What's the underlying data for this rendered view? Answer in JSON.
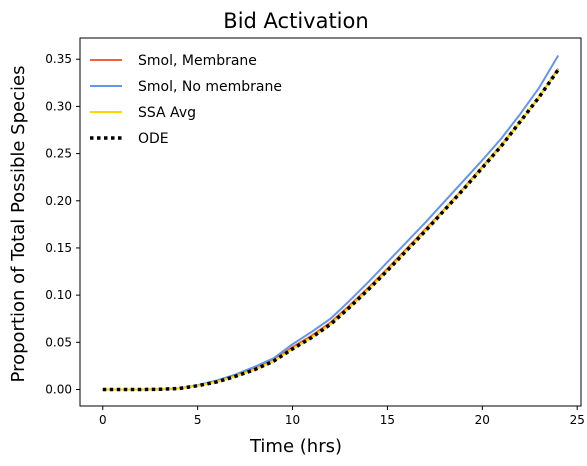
{
  "chart_data": {
    "type": "line",
    "title": "Bid Activation",
    "xlabel": "Time (hrs)",
    "ylabel": "Proportion of Total Possible Species",
    "xlim": [
      -1.2,
      25.2
    ],
    "ylim": [
      -0.0175,
      0.3725
    ],
    "xticks": [
      0,
      5,
      10,
      15,
      20,
      25
    ],
    "xtick_labels": [
      "0",
      "5",
      "10",
      "15",
      "20",
      "25"
    ],
    "yticks": [
      0.0,
      0.05,
      0.1,
      0.15,
      0.2,
      0.25,
      0.3,
      0.35
    ],
    "ytick_labels": [
      "0.00",
      "0.05",
      "0.10",
      "0.15",
      "0.20",
      "0.25",
      "0.30",
      "0.35"
    ],
    "grid": false,
    "legend_position": "top-left",
    "series": [
      {
        "name": "Smol, Membrane",
        "color": "#f4623a",
        "style": "solid",
        "x": [
          0,
          1,
          2,
          3,
          4,
          5,
          6,
          7,
          8,
          9,
          10,
          11,
          12,
          13,
          14,
          15,
          16,
          17,
          18,
          19,
          20,
          21,
          22,
          23,
          24
        ],
        "y": [
          0.0,
          0.0,
          0.0,
          0.0002,
          0.001,
          0.004,
          0.009,
          0.015,
          0.022,
          0.031,
          0.045,
          0.057,
          0.071,
          0.089,
          0.108,
          0.128,
          0.149,
          0.17,
          0.191,
          0.213,
          0.236,
          0.259,
          0.284,
          0.31,
          0.34
        ]
      },
      {
        "name": "Smol, No membrane",
        "color": "#6495ed",
        "style": "solid",
        "x": [
          0,
          1,
          2,
          3,
          4,
          5,
          6,
          7,
          8,
          9,
          10,
          11,
          12,
          13,
          14,
          15,
          16,
          17,
          18,
          19,
          20,
          21,
          22,
          23,
          24
        ],
        "y": [
          0.0,
          0.0,
          0.0,
          0.0003,
          0.0012,
          0.0045,
          0.0095,
          0.016,
          0.024,
          0.033,
          0.048,
          0.061,
          0.075,
          0.094,
          0.114,
          0.135,
          0.156,
          0.177,
          0.199,
          0.221,
          0.243,
          0.266,
          0.292,
          0.32,
          0.354
        ]
      },
      {
        "name": "SSA Avg",
        "color": "#ffd700",
        "style": "solid",
        "x": [
          0,
          1,
          2,
          3,
          4,
          5,
          6,
          7,
          8,
          9,
          10,
          11,
          12,
          13,
          14,
          15,
          16,
          17,
          18,
          19,
          20,
          21,
          22,
          23,
          24
        ],
        "y": [
          0.0,
          0.0,
          0.0,
          0.0002,
          0.001,
          0.004,
          0.008,
          0.014,
          0.021,
          0.03,
          0.043,
          0.055,
          0.069,
          0.087,
          0.106,
          0.126,
          0.147,
          0.168,
          0.19,
          0.212,
          0.235,
          0.258,
          0.284,
          0.31,
          0.339
        ]
      },
      {
        "name": "ODE",
        "color": "#000000",
        "style": "dotted",
        "x": [
          0,
          1,
          2,
          3,
          4,
          5,
          6,
          7,
          8,
          9,
          10,
          11,
          12,
          13,
          14,
          15,
          16,
          17,
          18,
          19,
          20,
          21,
          22,
          23,
          24
        ],
        "y": [
          0.0,
          0.0,
          0.0,
          0.0002,
          0.001,
          0.004,
          0.008,
          0.014,
          0.021,
          0.03,
          0.043,
          0.055,
          0.069,
          0.087,
          0.106,
          0.126,
          0.147,
          0.168,
          0.19,
          0.212,
          0.235,
          0.258,
          0.284,
          0.31,
          0.339
        ]
      }
    ]
  }
}
